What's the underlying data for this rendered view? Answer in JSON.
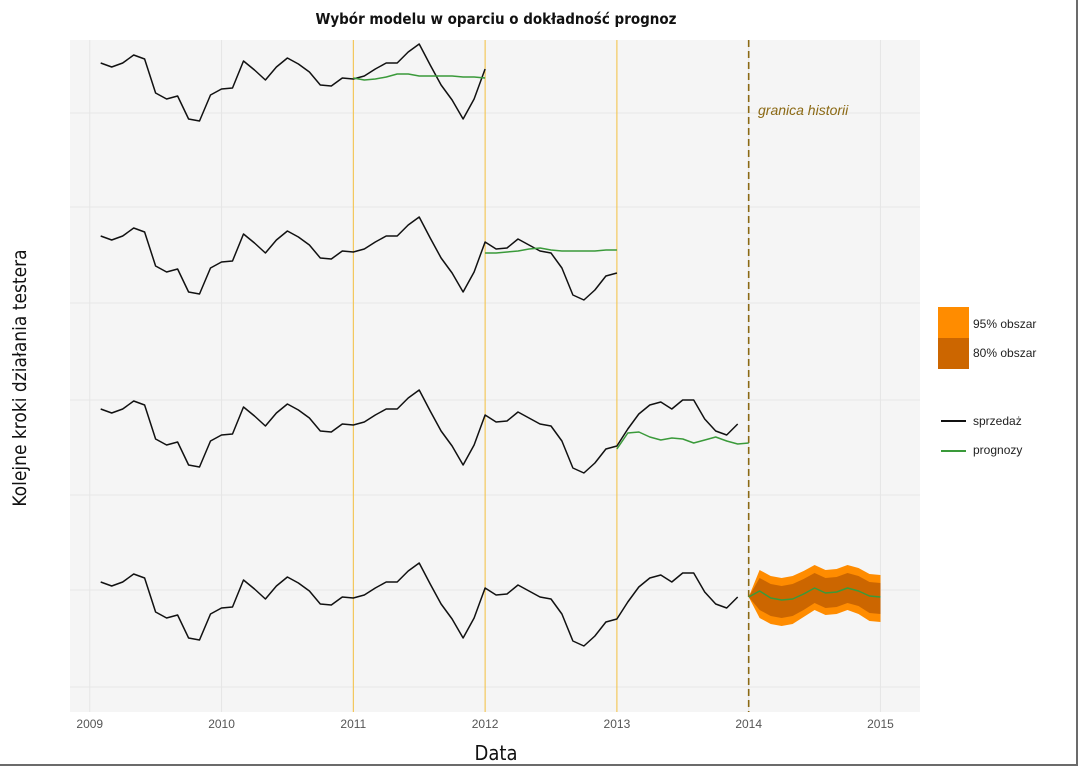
{
  "chart_data": {
    "type": "line",
    "title": "Wybór modelu w oparciu o dokładność prognoz",
    "xlabel": "Data",
    "ylabel": "Kolejne kroki działania testera",
    "xlim": [
      2008.85,
      2015.3
    ],
    "xticks": [
      "2009",
      "2010",
      "2011",
      "2012",
      "2013",
      "2014",
      "2015"
    ],
    "grid": true,
    "legend_position": "right",
    "annotation": "granica historii",
    "vlines": [
      {
        "x": 2011,
        "color": "#f5c242",
        "style": "solid"
      },
      {
        "x": 2012,
        "color": "#f5c242",
        "style": "solid"
      },
      {
        "x": 2013,
        "color": "#f5c242",
        "style": "solid"
      },
      {
        "x": 2014,
        "color": "#8b6914",
        "style": "dashed"
      }
    ],
    "sales_shape": [
      42,
      38,
      42,
      50,
      46,
      12,
      6,
      9,
      -14,
      -16,
      10,
      16,
      17,
      44,
      35,
      25,
      38,
      47,
      41,
      33,
      20,
      19,
      27,
      26,
      29,
      36,
      42,
      42,
      53,
      61,
      40,
      20,
      5,
      -14,
      6,
      36,
      29,
      30,
      39,
      33,
      27,
      25,
      10,
      -17,
      -22,
      -12,
      2,
      5,
      22,
      37,
      46,
      49,
      42,
      51,
      51,
      32,
      20,
      16,
      27
    ],
    "series": [
      {
        "name": "sprzedaż",
        "panel": 1,
        "start": 2009.083,
        "end": 2012.0,
        "offset": 0
      },
      {
        "name": "prognozy",
        "panel": 1,
        "x": [
          2011.0,
          2011.083,
          2011.167,
          2011.25,
          2011.333,
          2011.417,
          2011.5,
          2011.583,
          2011.667,
          2011.75,
          2011.833,
          2011.917,
          2012.0
        ],
        "values": [
          27,
          25,
          26,
          28,
          31,
          31,
          29,
          29,
          29,
          29,
          28,
          28,
          27
        ]
      },
      {
        "name": "sprzedaż",
        "panel": 2,
        "start": 2009.083,
        "end": 2013.0,
        "offset": 0
      },
      {
        "name": "prognozy",
        "panel": 2,
        "x": [
          2012.0,
          2012.083,
          2012.167,
          2012.25,
          2012.333,
          2012.417,
          2012.5,
          2012.583,
          2012.667,
          2012.75,
          2012.833,
          2012.917,
          2013.0
        ],
        "values": [
          25,
          25,
          26,
          27,
          29,
          30,
          28,
          27,
          27,
          27,
          27,
          28,
          28
        ]
      },
      {
        "name": "sprzedaż",
        "panel": 3,
        "start": 2009.083,
        "end": 2014.0,
        "offset": 0
      },
      {
        "name": "prognozy",
        "panel": 3,
        "x": [
          2013.0,
          2013.083,
          2013.167,
          2013.25,
          2013.333,
          2013.417,
          2013.5,
          2013.583,
          2013.667,
          2013.75,
          2013.833,
          2013.917,
          2014.0
        ],
        "values": [
          2,
          18,
          19,
          14,
          11,
          13,
          12,
          8,
          11,
          14,
          10,
          7,
          8
        ]
      },
      {
        "name": "sprzedaż",
        "panel": 4,
        "start": 2009.083,
        "end": 2014.0,
        "offset": 0
      },
      {
        "name": "prognozy",
        "panel": 4,
        "x": [
          2014.0,
          2014.083,
          2014.167,
          2014.25,
          2014.333,
          2014.417,
          2014.5,
          2014.583,
          2014.667,
          2014.75,
          2014.833,
          2014.917,
          2015.0
        ],
        "values": [
          27,
          33,
          26,
          24,
          25,
          30,
          36,
          31,
          32,
          36,
          33,
          28,
          27
        ]
      }
    ],
    "intervals": {
      "panel": 4,
      "x": [
        2014.0,
        2014.083,
        2014.167,
        2014.25,
        2014.333,
        2014.417,
        2014.5,
        2014.583,
        2014.667,
        2014.75,
        2014.833,
        2014.917,
        2015.0
      ],
      "lo95": [
        27,
        6,
        0,
        -2,
        0,
        7,
        14,
        9,
        10,
        14,
        10,
        3,
        2
      ],
      "lo80": [
        27,
        14,
        8,
        6,
        8,
        14,
        21,
        16,
        17,
        21,
        18,
        11,
        10
      ],
      "hi80": [
        27,
        46,
        40,
        38,
        40,
        45,
        51,
        46,
        47,
        51,
        48,
        42,
        41
      ],
      "hi95": [
        27,
        54,
        48,
        46,
        48,
        53,
        59,
        54,
        55,
        59,
        56,
        50,
        49
      ]
    },
    "legend": {
      "fill": [
        {
          "label": "95% obszar",
          "color": "#ff8c00"
        },
        {
          "label": "80% obszar",
          "color": "#cc6600"
        }
      ],
      "lines": [
        {
          "label": "sprzedaż",
          "color": "#111111"
        },
        {
          "label": "prognozy",
          "color": "#3a9a3a"
        }
      ]
    }
  }
}
